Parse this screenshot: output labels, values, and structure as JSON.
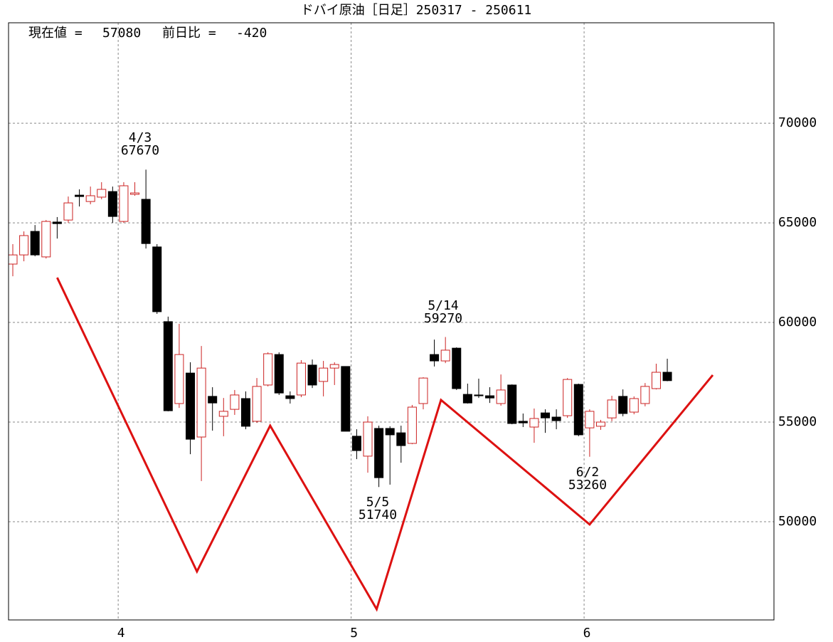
{
  "chart_data": {
    "type": "candlestick",
    "title": "ドバイ原油［日足］250317 - 250611",
    "header": {
      "current_label": "現在値 =",
      "current_value": 57080,
      "change_label": "前日比 =",
      "change_value": -420
    },
    "categories": [
      null,
      null,
      null,
      null,
      null,
      null,
      null,
      null,
      null,
      null,
      "4",
      null,
      null,
      null,
      null,
      null,
      null,
      null,
      null,
      null,
      null,
      null,
      null,
      null,
      null,
      null,
      null,
      null,
      null,
      null,
      null,
      "5",
      null,
      null,
      null,
      null,
      null,
      null,
      null,
      null,
      null,
      null,
      null,
      null,
      null,
      null,
      null,
      null,
      null,
      null,
      null,
      null,
      "6",
      null,
      null,
      null,
      null,
      null,
      null,
      null
    ],
    "open": [
      62930,
      63390,
      64570,
      63290,
      65040,
      65140,
      66390,
      66070,
      66290,
      66570,
      65070,
      66430,
      66180,
      63790,
      60040,
      55930,
      57460,
      54250,
      56290,
      55290,
      55640,
      56180,
      55040,
      56860,
      58390,
      56320,
      56360,
      57860,
      57040,
      57710,
      57790,
      54290,
      53290,
      54680,
      54680,
      54460,
      53930,
      55930,
      58390,
      58070,
      58710,
      56390,
      56360,
      56320,
      55930,
      56860,
      55040,
      54750,
      55460,
      55250,
      55320,
      56890,
      54710,
      54790,
      55210,
      56290,
      55500,
      55930,
      56680,
      57500
    ],
    "high": [
      63930,
      64570,
      64890,
      65140,
      65290,
      66320,
      66680,
      66820,
      67040,
      66820,
      67040,
      67040,
      67670,
      63930,
      60290,
      59930,
      58000,
      58820,
      56750,
      56210,
      56610,
      56540,
      57210,
      58500,
      58500,
      56540,
      58110,
      58140,
      58070,
      58000,
      57790,
      54640,
      55290,
      54820,
      54790,
      54820,
      55860,
      57250,
      59140,
      59270,
      58750,
      56930,
      57180,
      56750,
      57390,
      56890,
      55430,
      55680,
      55640,
      55640,
      57210,
      56930,
      55640,
      55110,
      56320,
      56640,
      56290,
      56960,
      57930,
      58180
    ],
    "low": [
      62320,
      63070,
      63320,
      63210,
      64210,
      65000,
      65820,
      65930,
      66180,
      65000,
      65000,
      66360,
      63710,
      60430,
      55540,
      55710,
      53390,
      52040,
      54570,
      54290,
      55360,
      54640,
      54960,
      56790,
      56360,
      55930,
      56250,
      56710,
      56290,
      56860,
      54540,
      53140,
      52460,
      51740,
      51860,
      52960,
      53890,
      55640,
      57790,
      57960,
      56610,
      55930,
      56210,
      55960,
      55820,
      54890,
      54750,
      53960,
      54460,
      54640,
      55210,
      54290,
      53260,
      54610,
      55040,
      55290,
      55390,
      55790,
      56640,
      57050
    ],
    "close": [
      63390,
      64360,
      63390,
      65070,
      64960,
      66000,
      66320,
      66360,
      66680,
      65320,
      66860,
      66500,
      63960,
      60540,
      55570,
      58390,
      54140,
      57710,
      55960,
      55540,
      56360,
      54790,
      56790,
      58430,
      56460,
      56180,
      57960,
      56860,
      57710,
      57890,
      54540,
      53570,
      55000,
      52210,
      54360,
      53820,
      55750,
      57210,
      58070,
      58610,
      56680,
      55960,
      56320,
      56210,
      56610,
      54930,
      54960,
      55180,
      55210,
      55070,
      57140,
      54360,
      55540,
      55000,
      56110,
      55430,
      56180,
      56790,
      57500,
      57080
    ],
    "up_color": "#cc2222",
    "down_color": "#000000",
    "line": {
      "color": "#dd1111",
      "x": [
        4,
        16.6,
        23.2,
        32.8,
        38.6,
        52,
        63.1
      ],
      "values": [
        62250,
        47500,
        54820,
        45610,
        56110,
        49860,
        57360
      ]
    },
    "annotations": [
      {
        "text": "4/3",
        "value": 67670
      },
      {
        "text": "5/5",
        "value": 51740
      },
      {
        "text": "5/14",
        "value": 59270
      },
      {
        "text": "6/2",
        "value": 53260
      }
    ],
    "ylim": [
      45070,
      75040
    ],
    "yticks": [
      50000,
      55000,
      60000,
      65000,
      70000
    ],
    "grid": true
  }
}
